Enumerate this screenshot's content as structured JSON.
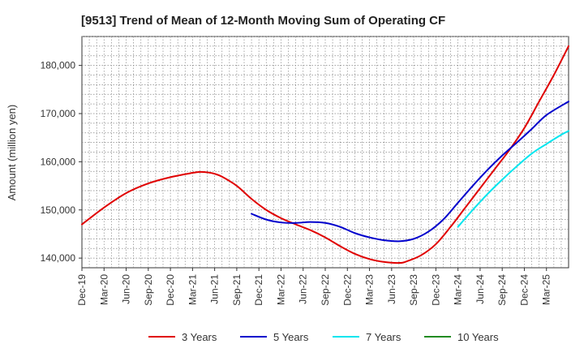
{
  "chart_data": {
    "type": "line",
    "title": "[9513]  Trend of Mean of 12-Month Moving Sum of Operating CF",
    "xlabel": "",
    "ylabel": "Amount (million yen)",
    "ylim": [
      138000,
      186000
    ],
    "y_ticks": [
      140000,
      150000,
      160000,
      170000,
      180000
    ],
    "y_tick_labels": [
      "140,000",
      "150,000",
      "160,000",
      "170,000",
      "180,000"
    ],
    "x_tick_labels": [
      "Dec-19",
      "Mar-20",
      "Jun-20",
      "Sep-20",
      "Dec-20",
      "Mar-21",
      "Jun-21",
      "Sep-21",
      "Dec-21",
      "Mar-22",
      "Jun-22",
      "Sep-22",
      "Dec-22",
      "Mar-23",
      "Jun-23",
      "Sep-23",
      "Dec-23",
      "Mar-24",
      "Jun-24",
      "Sep-24",
      "Dec-24",
      "Mar-25"
    ],
    "x_range_months": [
      0,
      63
    ],
    "x_tick_step_months": 3,
    "grid": true,
    "legend_position": "bottom",
    "series": [
      {
        "name": "3 Years",
        "color": "#e00000",
        "points": [
          [
            0,
            147000
          ],
          [
            3,
            150500
          ],
          [
            6,
            153500
          ],
          [
            9,
            155500
          ],
          [
            12,
            156800
          ],
          [
            15,
            157700
          ],
          [
            16,
            157900
          ],
          [
            17,
            157800
          ],
          [
            18,
            157500
          ],
          [
            19,
            156900
          ],
          [
            21,
            155000
          ],
          [
            23,
            152300
          ],
          [
            25,
            150000
          ],
          [
            27,
            148300
          ],
          [
            29,
            147000
          ],
          [
            31,
            145800
          ],
          [
            33,
            144300
          ],
          [
            35,
            142500
          ],
          [
            37,
            140900
          ],
          [
            39,
            139800
          ],
          [
            41,
            139200
          ],
          [
            43,
            139000
          ],
          [
            44,
            139300
          ],
          [
            46,
            140600
          ],
          [
            48,
            142900
          ],
          [
            50,
            146500
          ],
          [
            52,
            150500
          ],
          [
            54,
            154500
          ],
          [
            56,
            158500
          ],
          [
            58,
            162500
          ],
          [
            60,
            167000
          ],
          [
            62,
            172500
          ],
          [
            64,
            178000
          ],
          [
            66,
            184000
          ]
        ]
      },
      {
        "name": "5 Years",
        "color": "#0000cc",
        "points": [
          [
            23,
            149200
          ],
          [
            25,
            148000
          ],
          [
            27,
            147400
          ],
          [
            29,
            147300
          ],
          [
            31,
            147500
          ],
          [
            33,
            147300
          ],
          [
            35,
            146500
          ],
          [
            37,
            145200
          ],
          [
            39,
            144300
          ],
          [
            41,
            143700
          ],
          [
            43,
            143500
          ],
          [
            45,
            144000
          ],
          [
            47,
            145500
          ],
          [
            49,
            148000
          ],
          [
            51,
            151500
          ],
          [
            53,
            155000
          ],
          [
            55,
            158300
          ],
          [
            57,
            161300
          ],
          [
            59,
            164000
          ],
          [
            61,
            166800
          ],
          [
            63,
            169700
          ],
          [
            66,
            172500
          ]
        ]
      },
      {
        "name": "7 Years",
        "color": "#00e5ee",
        "points": [
          [
            51,
            146500
          ],
          [
            53,
            150000
          ],
          [
            55,
            153300
          ],
          [
            57,
            156300
          ],
          [
            59,
            159100
          ],
          [
            61,
            161700
          ],
          [
            63,
            163700
          ],
          [
            65,
            165600
          ],
          [
            66,
            166400
          ]
        ]
      },
      {
        "name": "10 Years",
        "color": "#228b22",
        "points": []
      }
    ]
  }
}
